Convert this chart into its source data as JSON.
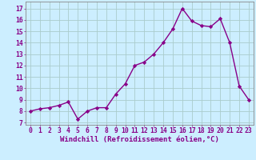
{
  "x": [
    0,
    1,
    2,
    3,
    4,
    5,
    6,
    7,
    8,
    9,
    10,
    11,
    12,
    13,
    14,
    15,
    16,
    17,
    18,
    19,
    20,
    21,
    22,
    23
  ],
  "y": [
    8.0,
    8.2,
    8.3,
    8.5,
    8.8,
    7.3,
    8.0,
    8.3,
    8.3,
    9.5,
    10.4,
    12.0,
    12.3,
    13.0,
    14.0,
    15.2,
    17.0,
    15.9,
    15.5,
    15.4,
    16.1,
    14.0,
    10.2,
    9.0
  ],
  "line_color": "#880088",
  "marker": "D",
  "marker_size": 2.2,
  "xlabel": "Windchill (Refroidissement éolien,°C)",
  "xlabel_fontsize": 6.5,
  "ytick_labels": [
    "7",
    "8",
    "9",
    "10",
    "11",
    "12",
    "13",
    "14",
    "15",
    "16",
    "17"
  ],
  "ytick_values": [
    7,
    8,
    9,
    10,
    11,
    12,
    13,
    14,
    15,
    16,
    17
  ],
  "xlim": [
    -0.5,
    23.5
  ],
  "ylim": [
    6.8,
    17.6
  ],
  "background_color": "#cceeff",
  "grid_color": "#aacccc",
  "tick_fontsize": 5.8,
  "linewidth": 1.0
}
